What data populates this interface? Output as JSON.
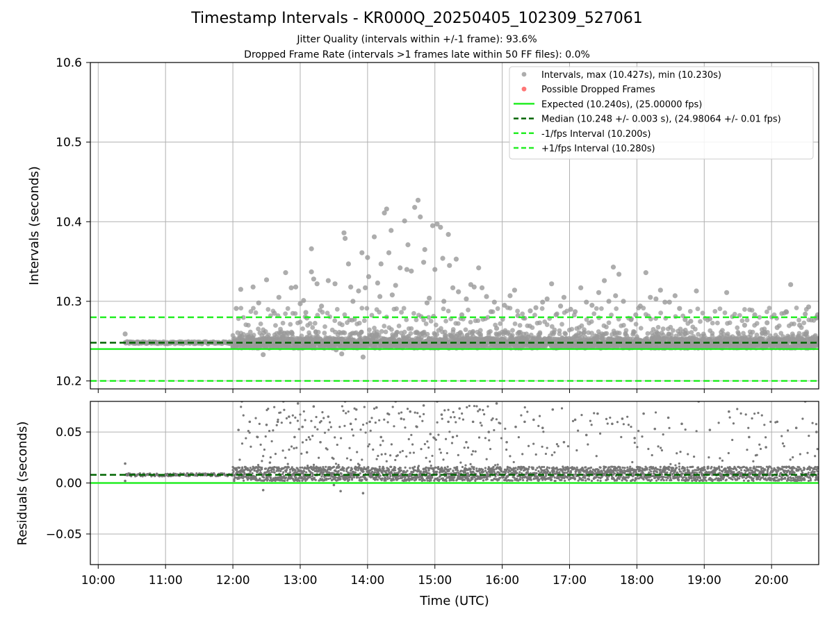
{
  "chart_data": [
    {
      "type": "scatter",
      "title": "Timestamp Intervals - KR000Q_20250405_102309_527061",
      "subtitle_lines": [
        "Jitter Quality (intervals within +/-1 frame): 93.6%",
        "Dropped Frame Rate (intervals >1 frames late within 50 FF files): 0.0%"
      ],
      "xlabel": "",
      "ylabel": "Intervals (seconds)",
      "xlim": [
        "09:53",
        "20:42"
      ],
      "ylim": [
        10.19,
        10.6
      ],
      "yticks": [
        "10.2",
        "10.3",
        "10.4",
        "10.5",
        "10.6"
      ],
      "grid": true,
      "legend_position": "top-right",
      "legend": [
        "Intervals, max (10.427s), min (10.230s)",
        "Possible Dropped Frames",
        "Expected (10.240s), (25.00000 fps)",
        "Median (10.248 +/- 0.003 s), (24.98064 +/- 0.01 fps)",
        "-1/fps Interval (10.200s)",
        "+1/fps Interval (10.280s)"
      ],
      "reference_lines": {
        "expected": 10.24,
        "median": 10.248,
        "minus_1_fps": 10.2,
        "plus_1_fps": 10.28
      },
      "series": [
        {
          "name": "Intervals, max (10.427s), min (10.230s)",
          "color": "#999999",
          "points": [
            [
              "10:24",
              10.259
            ],
            [
              "12:03",
              10.291
            ],
            [
              "12:07",
              10.315
            ],
            [
              "12:18",
              10.318
            ],
            [
              "12:23",
              10.298
            ],
            [
              "12:27",
              10.233
            ],
            [
              "12:30",
              10.327
            ],
            [
              "12:37",
              10.285
            ],
            [
              "12:41",
              10.305
            ],
            [
              "12:47",
              10.336
            ],
            [
              "12:52",
              10.317
            ],
            [
              "12:56",
              10.318
            ],
            [
              "13:00",
              10.297
            ],
            [
              "13:03",
              10.301
            ],
            [
              "13:05",
              10.286
            ],
            [
              "13:06",
              10.279
            ],
            [
              "13:10",
              10.366
            ],
            [
              "13:10",
              10.337
            ],
            [
              "13:12",
              10.328
            ],
            [
              "13:15",
              10.322
            ],
            [
              "13:19",
              10.294
            ],
            [
              "13:25",
              10.326
            ],
            [
              "13:31",
              10.322
            ],
            [
              "13:32",
              10.239
            ],
            [
              "13:37",
              10.234
            ],
            [
              "13:39",
              10.386
            ],
            [
              "13:40",
              10.379
            ],
            [
              "13:43",
              10.347
            ],
            [
              "13:45",
              10.318
            ],
            [
              "13:47",
              10.3
            ],
            [
              "13:49",
              10.244
            ],
            [
              "13:52",
              10.313
            ],
            [
              "13:55",
              10.361
            ],
            [
              "13:56",
              10.23
            ],
            [
              "13:58",
              10.317
            ],
            [
              "14:00",
              10.355
            ],
            [
              "14:01",
              10.331
            ],
            [
              "14:06",
              10.381
            ],
            [
              "14:09",
              10.323
            ],
            [
              "14:11",
              10.306
            ],
            [
              "14:12",
              10.347
            ],
            [
              "14:15",
              10.411
            ],
            [
              "14:17",
              10.416
            ],
            [
              "14:19",
              10.361
            ],
            [
              "14:21",
              10.389
            ],
            [
              "14:22",
              10.308
            ],
            [
              "14:25",
              10.32
            ],
            [
              "14:29",
              10.342
            ],
            [
              "14:33",
              10.401
            ],
            [
              "14:35",
              10.34
            ],
            [
              "14:36",
              10.371
            ],
            [
              "14:39",
              10.338
            ],
            [
              "14:42",
              10.418
            ],
            [
              "14:45",
              10.427
            ],
            [
              "14:47",
              10.406
            ],
            [
              "14:50",
              10.349
            ],
            [
              "14:51",
              10.365
            ],
            [
              "14:53",
              10.298
            ],
            [
              "14:55",
              10.304
            ],
            [
              "14:58",
              10.395
            ],
            [
              "15:00",
              10.34
            ],
            [
              "15:02",
              10.397
            ],
            [
              "15:05",
              10.393
            ],
            [
              "15:07",
              10.354
            ],
            [
              "15:08",
              10.3
            ],
            [
              "15:12",
              10.384
            ],
            [
              "15:13",
              10.345
            ],
            [
              "15:16",
              10.317
            ],
            [
              "15:19",
              10.353
            ],
            [
              "15:21",
              10.312
            ],
            [
              "15:24",
              10.283
            ],
            [
              "15:28",
              10.303
            ],
            [
              "15:32",
              10.321
            ],
            [
              "15:35",
              10.318
            ],
            [
              "15:39",
              10.342
            ],
            [
              "15:42",
              10.317
            ],
            [
              "15:46",
              10.306
            ],
            [
              "15:50",
              10.287
            ],
            [
              "15:53",
              10.299
            ],
            [
              "15:55",
              10.266
            ],
            [
              "16:02",
              10.295
            ],
            [
              "16:07",
              10.307
            ],
            [
              "16:11",
              10.314
            ],
            [
              "16:14",
              10.282
            ],
            [
              "16:19",
              10.279
            ],
            [
              "16:25",
              10.288
            ],
            [
              "16:30",
              10.292
            ],
            [
              "16:36",
              10.299
            ],
            [
              "16:40",
              10.303
            ],
            [
              "16:44",
              10.322
            ],
            [
              "16:48",
              10.283
            ],
            [
              "16:52",
              10.294
            ],
            [
              "16:55",
              10.305
            ],
            [
              "17:01",
              10.29
            ],
            [
              "17:05",
              10.287
            ],
            [
              "17:10",
              10.317
            ],
            [
              "17:15",
              10.299
            ],
            [
              "17:20",
              10.295
            ],
            [
              "17:26",
              10.311
            ],
            [
              "17:31",
              10.326
            ],
            [
              "17:35",
              10.3
            ],
            [
              "17:39",
              10.343
            ],
            [
              "17:41",
              10.307
            ],
            [
              "17:44",
              10.334
            ],
            [
              "17:48",
              10.3
            ],
            [
              "17:55",
              10.278
            ],
            [
              "17:59",
              10.283
            ],
            [
              "18:03",
              10.294
            ],
            [
              "18:08",
              10.336
            ],
            [
              "18:12",
              10.305
            ],
            [
              "18:17",
              10.303
            ],
            [
              "18:21",
              10.314
            ],
            [
              "18:25",
              10.299
            ],
            [
              "18:29",
              10.299
            ],
            [
              "18:34",
              10.307
            ],
            [
              "18:38",
              10.291
            ],
            [
              "18:43",
              10.277
            ],
            [
              "18:48",
              10.275
            ],
            [
              "18:53",
              10.313
            ],
            [
              "19:05",
              10.278
            ],
            [
              "19:20",
              10.311
            ],
            [
              "19:36",
              10.27
            ],
            [
              "19:45",
              10.283
            ],
            [
              "19:56",
              10.273
            ],
            [
              "20:05",
              10.267
            ],
            [
              "20:13",
              10.287
            ],
            [
              "20:17",
              10.321
            ],
            [
              "20:25",
              10.27
            ],
            [
              "20:30",
              10.284
            ],
            [
              "20:33",
              10.293
            ],
            [
              "20:40",
              10.279
            ],
            [
              "20:41",
              10.283
            ]
          ]
        },
        {
          "name": "Possible Dropped Frames",
          "color": "#ff5555",
          "points": []
        }
      ],
      "dense_band": {
        "description_free_range_utc": [
          "10:24",
          "20:42"
        ],
        "typical_interval": 10.248,
        "spread": [
          10.241,
          10.262
        ]
      }
    },
    {
      "type": "scatter",
      "title": "",
      "xlabel": "Time (UTC)",
      "ylabel": "Residuals (seconds)",
      "xlim": [
        "09:53",
        "20:42"
      ],
      "ylim": [
        -0.08,
        0.08
      ],
      "yticks": [
        "−0.05",
        "0.00",
        "0.05"
      ],
      "xticks": [
        "10:00",
        "11:00",
        "12:00",
        "13:00",
        "14:00",
        "15:00",
        "16:00",
        "17:00",
        "18:00",
        "19:00",
        "20:00"
      ],
      "grid": true,
      "reference_lines": {
        "expected": 0.0,
        "median": 0.008
      },
      "series": [
        {
          "name": "",
          "color": "#777777",
          "points": [
            [
              "10:24",
              0.019
            ],
            [
              "10:24",
              0.002
            ],
            [
              "12:05",
              0.052
            ],
            [
              "12:08",
              0.08
            ],
            [
              "12:15",
              0.06
            ],
            [
              "12:22",
              0.045
            ],
            [
              "12:27",
              -0.007
            ],
            [
              "12:30",
              0.057
            ],
            [
              "12:33",
              0.02
            ],
            [
              "12:40",
              0.06
            ],
            [
              "12:45",
              0.08
            ],
            [
              "12:50",
              0.065
            ],
            [
              "12:55",
              0.045
            ],
            [
              "12:58",
              0.078
            ],
            [
              "13:02",
              0.055
            ],
            [
              "13:06",
              0.03
            ],
            [
              "13:12",
              0.075
            ],
            [
              "13:18",
              0.04
            ],
            [
              "13:25",
              0.065
            ],
            [
              "13:30",
              -0.002
            ],
            [
              "13:36",
              -0.008
            ],
            [
              "13:40",
              0.08
            ],
            [
              "13:45",
              0.058
            ],
            [
              "13:50",
              0.072
            ],
            [
              "13:56",
              -0.01
            ],
            [
              "14:02",
              0.06
            ],
            [
              "14:08",
              0.074
            ],
            [
              "14:12",
              0.045
            ],
            [
              "14:18",
              0.068
            ],
            [
              "14:25",
              0.08
            ],
            [
              "14:30",
              0.063
            ],
            [
              "14:38",
              0.07
            ],
            [
              "14:44",
              0.055
            ],
            [
              "14:50",
              0.076
            ],
            [
              "14:56",
              0.048
            ],
            [
              "15:02",
              0.08
            ],
            [
              "15:06",
              0.067
            ],
            [
              "15:12",
              0.06
            ],
            [
              "15:16",
              0.045
            ],
            [
              "15:22",
              0.073
            ],
            [
              "15:28",
              0.04
            ],
            [
              "15:34",
              0.06
            ],
            [
              "15:40",
              0.072
            ],
            [
              "15:48",
              0.05
            ],
            [
              "15:55",
              0.078
            ],
            [
              "16:04",
              0.04
            ],
            [
              "16:12",
              0.055
            ],
            [
              "16:20",
              0.06
            ],
            [
              "16:28",
              0.062
            ],
            [
              "16:36",
              0.054
            ],
            [
              "16:45",
              0.072
            ],
            [
              "16:55",
              0.04
            ],
            [
              "17:05",
              0.062
            ],
            [
              "17:15",
              0.047
            ],
            [
              "17:25",
              0.068
            ],
            [
              "17:38",
              0.058
            ],
            [
              "17:47",
              0.063
            ],
            [
              "17:58",
              0.044
            ],
            [
              "18:06",
              0.068
            ],
            [
              "18:16",
              0.053
            ],
            [
              "18:28",
              0.064
            ],
            [
              "18:40",
              0.058
            ],
            [
              "18:55",
              0.08
            ],
            [
              "19:05",
              0.052
            ],
            [
              "19:22",
              0.07
            ],
            [
              "19:40",
              0.045
            ],
            [
              "19:55",
              0.035
            ],
            [
              "20:05",
              0.06
            ],
            [
              "20:22",
              0.054
            ],
            [
              "20:30",
              0.08
            ],
            [
              "20:40",
              0.05
            ]
          ]
        }
      ],
      "dense_band": {
        "range_utc": [
          "10:24",
          "20:42"
        ],
        "typical_residual": 0.008,
        "spread": [
          0.002,
          0.016
        ]
      }
    }
  ]
}
